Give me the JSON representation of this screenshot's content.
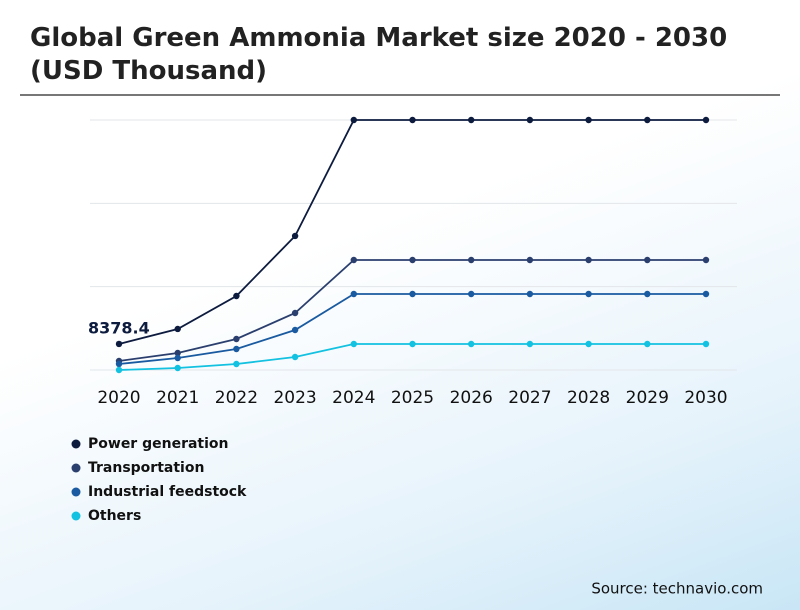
{
  "chart_data": {
    "type": "line",
    "title": "Global Green Ammonia Market size 2020 - 2030 (USD Thousand)",
    "categories": [
      "2020",
      "2021",
      "2022",
      "2023",
      "2024",
      "2025",
      "2026",
      "2027",
      "2028",
      "2029",
      "2030"
    ],
    "series": [
      {
        "name": "Power generation",
        "color": "#0d1b3e",
        "values": [
          8378.4,
          13190,
          23800,
          43100,
          80400,
          80400,
          80400,
          80400,
          80400,
          80400,
          80400
        ]
      },
      {
        "name": "Transportation",
        "color": "#2b3f6e",
        "values": [
          2900,
          5470,
          9970,
          18330,
          35380,
          35380,
          35380,
          35380,
          35380,
          35380,
          35380
        ]
      },
      {
        "name": "Industrial feedstock",
        "color": "#1a5aa0",
        "values": [
          1930,
          3860,
          6750,
          12860,
          24440,
          24440,
          24440,
          24440,
          24440,
          24440,
          24440
        ]
      },
      {
        "name": "Others",
        "color": "#13c1e0",
        "values": [
          0,
          640,
          1930,
          4180,
          8360,
          8360,
          8360,
          8360,
          8360,
          8360,
          8360
        ]
      }
    ],
    "ylim": [
      0,
      80400
    ],
    "yticks": [
      0,
      26800,
      53600,
      80400
    ],
    "grid": true,
    "source": "Source: technavio.com"
  }
}
